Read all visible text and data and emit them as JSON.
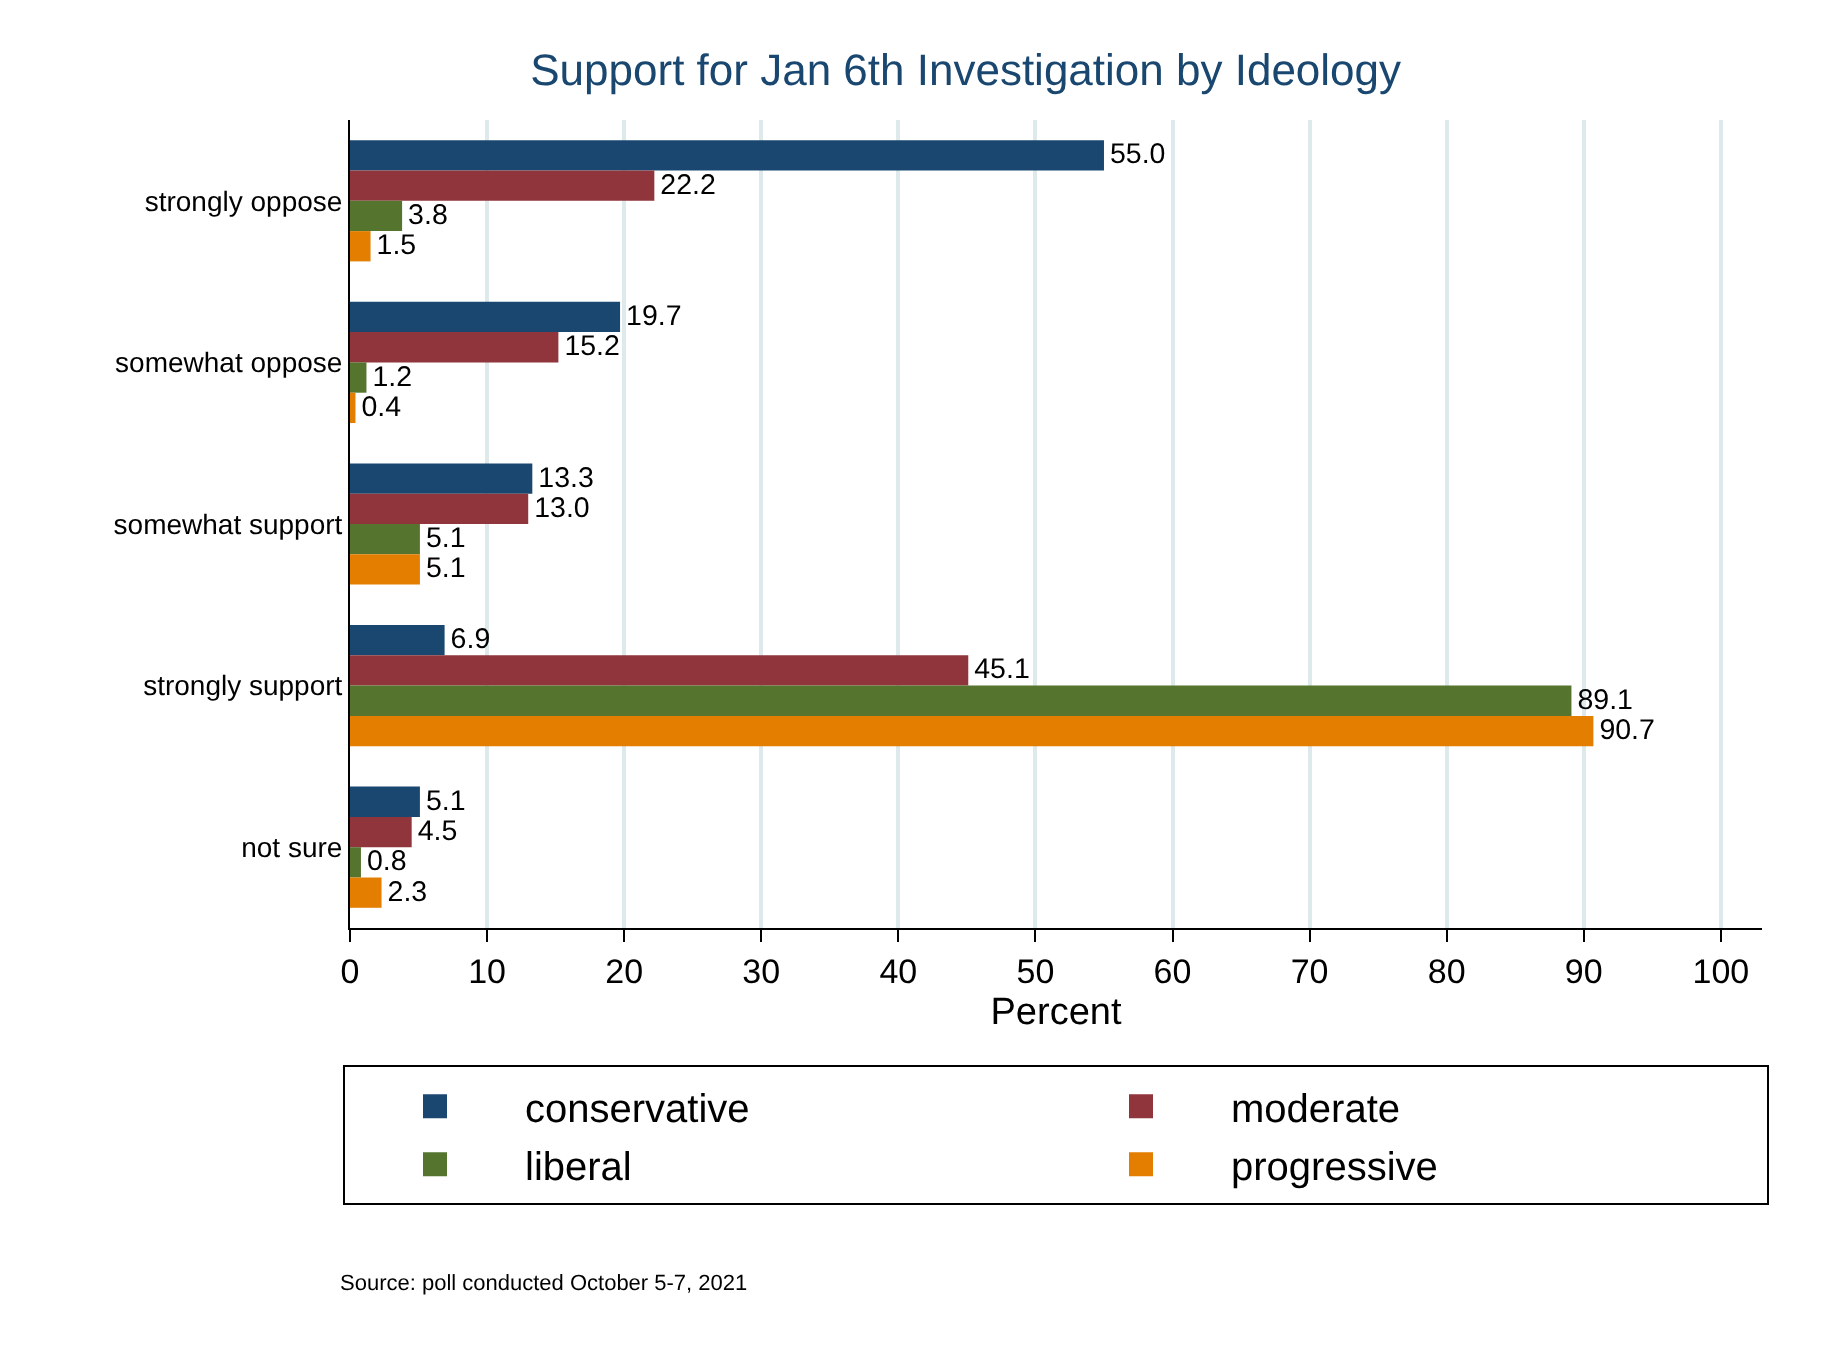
{
  "chart_data": {
    "type": "bar",
    "orientation": "horizontal",
    "title": "Support for Jan 6th Investigation by Ideology",
    "xlabel": "Percent",
    "categories": [
      "strongly oppose",
      "somewhat oppose",
      "somewhat support",
      "strongly support",
      "not sure"
    ],
    "series": [
      {
        "name": "conservative",
        "color": "#1a476f",
        "values": [
          55.0,
          19.7,
          13.3,
          6.9,
          5.1
        ],
        "value_labels": [
          "55.0",
          "19.7",
          "13.3",
          "6.9",
          "5.1"
        ]
      },
      {
        "name": "moderate",
        "color": "#90353b",
        "values": [
          22.2,
          15.2,
          13.0,
          45.1,
          4.5
        ],
        "value_labels": [
          "22.2",
          "15.2",
          "13.0",
          "45.1",
          "4.5"
        ]
      },
      {
        "name": "liberal",
        "color": "#55752f",
        "values": [
          3.8,
          1.2,
          5.1,
          89.1,
          0.8
        ],
        "value_labels": [
          "3.8",
          "1.2",
          "5.1",
          "89.1",
          "0.8"
        ]
      },
      {
        "name": "progressive",
        "color": "#e37e00",
        "values": [
          1.5,
          0.4,
          5.1,
          90.7,
          2.3
        ],
        "value_labels": [
          "1.5",
          "0.4",
          "5.1",
          "90.7",
          "2.3"
        ]
      }
    ],
    "xlim": [
      0,
      103
    ],
    "xticks": [
      0,
      10,
      20,
      30,
      40,
      50,
      60,
      70,
      80,
      90,
      100
    ],
    "grid": "x",
    "legend": "bottom",
    "annotations": [
      "Source: poll conducted October 5-7, 2021"
    ]
  }
}
